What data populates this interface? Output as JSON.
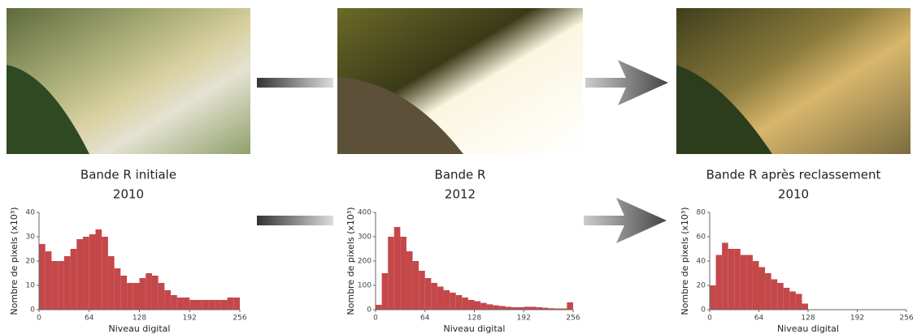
{
  "chart_data": [
    {
      "type": "histogram",
      "title": "Bande R initiale",
      "subtitle": "2010",
      "x_label": "Niveau digital",
      "y_label": "Nombre de pixels (x10³)",
      "color": "#c4484a",
      "bins": [
        0,
        8,
        16,
        24,
        32,
        40,
        48,
        56,
        64,
        72,
        80,
        88,
        96,
        104,
        112,
        120,
        128,
        136,
        144,
        152,
        160,
        168,
        176,
        184,
        192,
        200,
        208,
        216,
        224,
        232,
        240,
        248,
        256
      ],
      "values": [
        27,
        24,
        20,
        20,
        22,
        25,
        29,
        30,
        31,
        33,
        30,
        22,
        17,
        14,
        11,
        11,
        13,
        15,
        14,
        11,
        8,
        6,
        5,
        5,
        4,
        4,
        4,
        4,
        4,
        4,
        5,
        5
      ],
      "xlim": [
        0,
        256
      ],
      "xticks": [
        0,
        64,
        128,
        192,
        256
      ],
      "ylim": [
        0,
        40
      ],
      "yticks": [
        0,
        10,
        20,
        30,
        40
      ]
    },
    {
      "type": "histogram",
      "title": "Bande R",
      "subtitle": "2012",
      "x_label": "Niveau digital",
      "y_label": "Nombre de pixels (x10³)",
      "color": "#c4484a",
      "bins": [
        0,
        8,
        16,
        24,
        32,
        40,
        48,
        56,
        64,
        72,
        80,
        88,
        96,
        104,
        112,
        120,
        128,
        136,
        144,
        152,
        160,
        168,
        176,
        184,
        192,
        200,
        208,
        216,
        224,
        232,
        240,
        248,
        256
      ],
      "values": [
        20,
        150,
        300,
        340,
        300,
        240,
        200,
        160,
        130,
        110,
        95,
        80,
        70,
        60,
        50,
        40,
        35,
        28,
        22,
        18,
        15,
        12,
        10,
        10,
        12,
        12,
        10,
        8,
        6,
        5,
        5,
        30
      ],
      "xlim": [
        0,
        256
      ],
      "xticks": [
        0,
        64,
        128,
        192,
        256
      ],
      "ylim": [
        0,
        400
      ],
      "yticks": [
        0,
        100,
        200,
        300,
        400
      ]
    },
    {
      "type": "histogram",
      "title": "Bande R après reclassement",
      "subtitle": "2010",
      "x_label": "Niveau digital",
      "y_label": "Nombre de pixels (x10³)",
      "color": "#c4484a",
      "bins": [
        0,
        8,
        16,
        24,
        32,
        40,
        48,
        56,
        64,
        72,
        80,
        88,
        96,
        104,
        112,
        120,
        128,
        136,
        144,
        152,
        160,
        168,
        176,
        184,
        192,
        200,
        208,
        216,
        224,
        232,
        240,
        248,
        256
      ],
      "values": [
        20,
        45,
        55,
        50,
        50,
        45,
        45,
        40,
        35,
        30,
        25,
        22,
        18,
        15,
        13,
        5,
        0,
        0,
        0,
        0,
        0,
        0,
        0,
        0,
        0,
        0,
        0,
        0,
        0,
        0,
        0,
        0
      ],
      "xlim": [
        0,
        256
      ],
      "xticks": [
        0,
        64,
        128,
        192,
        256
      ],
      "ylim": [
        0,
        80
      ],
      "yticks": [
        0,
        20,
        40,
        60,
        80
      ]
    }
  ]
}
